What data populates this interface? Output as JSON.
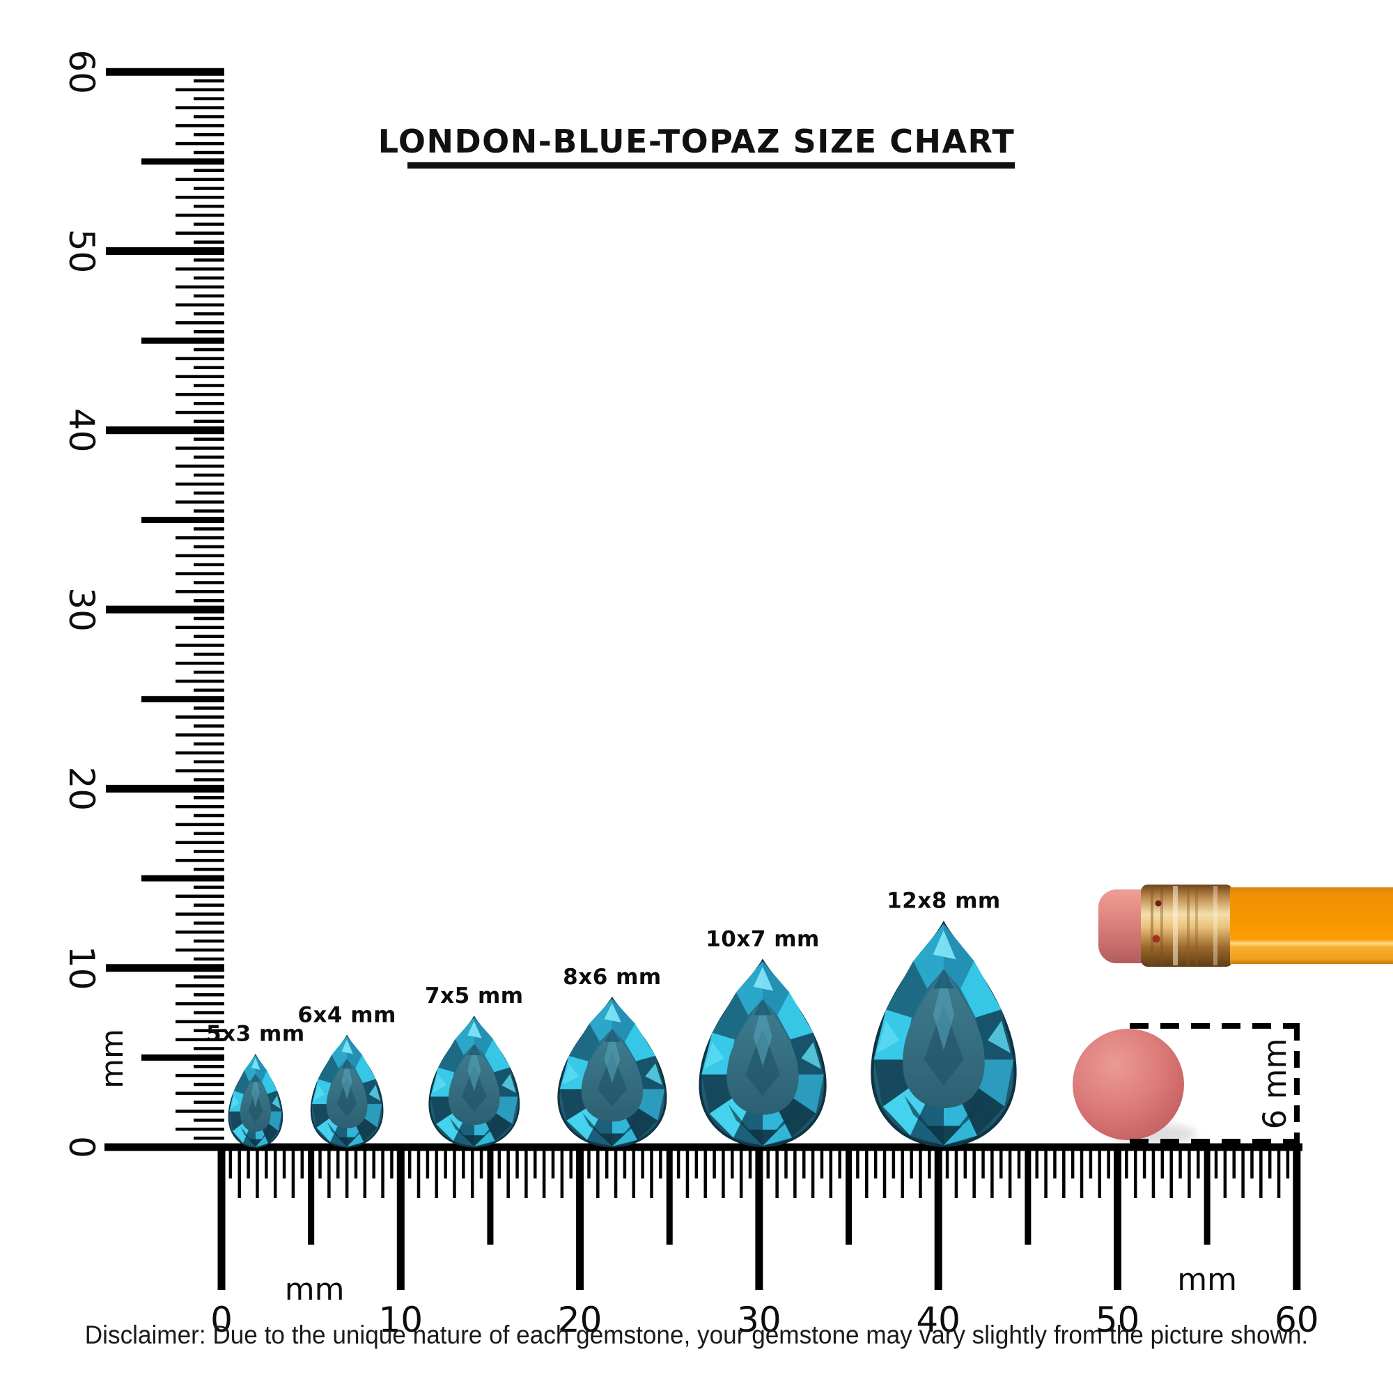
{
  "title": {
    "text": "LONDON-BLUE-TOPAZ SIZE CHART"
  },
  "vertical_ruler": {
    "unit_label": "mm",
    "labels": [
      "0",
      "10",
      "20",
      "30",
      "40",
      "50",
      "60"
    ],
    "range_mm": [
      0,
      60
    ]
  },
  "horizontal_ruler": {
    "unit_label_left": "mm",
    "unit_label_right": "mm",
    "labels": [
      "0",
      "10",
      "20",
      "30",
      "40",
      "50",
      "60"
    ],
    "range_mm": [
      0,
      60
    ]
  },
  "gems": [
    {
      "label": "5x3 mm",
      "width_mm": 3,
      "height_mm": 5,
      "position_mm": 1.9
    },
    {
      "label": "6x4 mm",
      "width_mm": 4,
      "height_mm": 6,
      "position_mm": 7.0
    },
    {
      "label": "7x5 mm",
      "width_mm": 5,
      "height_mm": 7,
      "position_mm": 14.1
    },
    {
      "label": "8x6 mm",
      "width_mm": 6,
      "height_mm": 8,
      "position_mm": 21.8
    },
    {
      "label": "10x7 mm",
      "width_mm": 7,
      "height_mm": 10,
      "position_mm": 30.2
    },
    {
      "label": "12x8 mm",
      "width_mm": 8,
      "height_mm": 12,
      "position_mm": 40.3
    }
  ],
  "measure_box": {
    "label": "6 mm"
  },
  "disclaimer": {
    "text": "Disclaimer: Due to the unique nature of each gemstone, your gemstone may vary slightly from the picture shown."
  },
  "colors": {
    "ink": "#000000",
    "gem_rim_dark": "#0f3444",
    "gem_base": "#1d5468",
    "gem_table_light": "#3f7e90",
    "gem_table_dark": "#2c6072",
    "gem_sparkle": "#7fe3f5",
    "gem_facet_palette": [
      "#2390b4",
      "#36c6e6",
      "#17546c",
      "#2b9cbd",
      "#123f52",
      "#31b6d8",
      "#1a607a",
      "#45d2ee",
      "#16495e",
      "#38c8e8",
      "#1d6a85",
      "#2aa7c9"
    ],
    "pencil_orange": "#f89800",
    "pencil_orange_dark": "#d9830f",
    "pencil_stripe": "#ffd887",
    "ferrule_gold_light": "#f5dfa9",
    "ferrule_gold": "#c9953f",
    "ferrule_gold_dark": "#6d441a",
    "eraser_pink": "#d97a78",
    "eraser_circle_red": "#d4716f"
  }
}
